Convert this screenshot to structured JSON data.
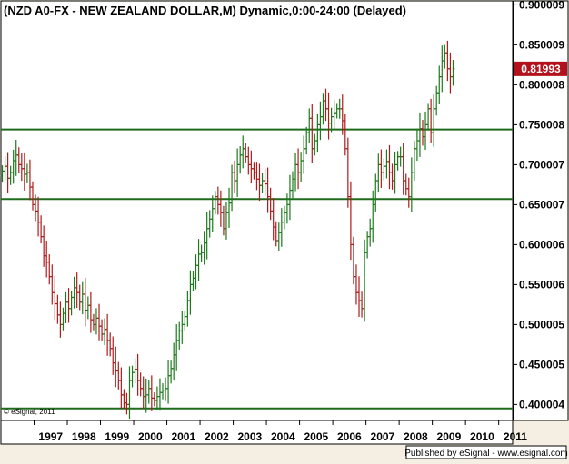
{
  "chart_data": {
    "type": "ohlc",
    "title": "(NZD A0-FX - NEW ZEALAND DOLLAR,M) Dynamic,0:00-24:00 (Delayed)",
    "copyright": "© eSignal, 2011",
    "footer": "Published by eSignal - www.esignal.com",
    "ylim": [
      0.38,
      0.905
    ],
    "x_range": [
      1996.0,
      2011.42
    ],
    "y_tick_labels": [
      "0.900009",
      "0.850009",
      "0.800008",
      "0.750008",
      "0.700007",
      "0.650007",
      "0.600006",
      "0.550006",
      "0.500005",
      "0.450005",
      "0.400004"
    ],
    "y_tick_values": [
      0.900009,
      0.850009,
      0.800008,
      0.750008,
      0.700007,
      0.650007,
      0.600006,
      0.550006,
      0.500005,
      0.450005,
      0.400004
    ],
    "x_tick_labels": [
      "1997",
      "1998",
      "1999",
      "2000",
      "2001",
      "2002",
      "2003",
      "2004",
      "2005",
      "2006",
      "2007",
      "2008",
      "2009",
      "2010",
      "2011"
    ],
    "x_tick_values": [
      1997,
      1998,
      1999,
      2000,
      2001,
      2002,
      2003,
      2004,
      2005,
      2006,
      2007,
      2008,
      2009,
      2010,
      2011
    ],
    "last_price": "0.81993",
    "last_value": 0.81993,
    "horizontal_lines": [
      0.744,
      0.657,
      0.395
    ],
    "start_year": 1996.0,
    "bars_per_year": 12,
    "close": [
      0.692,
      0.698,
      0.683,
      0.69,
      0.705,
      0.712,
      0.7,
      0.695,
      0.688,
      0.69,
      0.672,
      0.65,
      0.642,
      0.628,
      0.61,
      0.586,
      0.578,
      0.56,
      0.54,
      0.526,
      0.512,
      0.5,
      0.514,
      0.528,
      0.52,
      0.534,
      0.546,
      0.54,
      0.528,
      0.538,
      0.518,
      0.524,
      0.506,
      0.5,
      0.508,
      0.498,
      0.488,
      0.494,
      0.48,
      0.47,
      0.452,
      0.442,
      0.43,
      0.412,
      0.402,
      0.4,
      0.43,
      0.44,
      0.444,
      0.43,
      0.42,
      0.41,
      0.412,
      0.42,
      0.408,
      0.405,
      0.41,
      0.415,
      0.418,
      0.42,
      0.436,
      0.445,
      0.462,
      0.48,
      0.492,
      0.5,
      0.51,
      0.53,
      0.55,
      0.558,
      0.574,
      0.588,
      0.59,
      0.602,
      0.62,
      0.632,
      0.645,
      0.66,
      0.65,
      0.64,
      0.62,
      0.64,
      0.652,
      0.69,
      0.68,
      0.7,
      0.712,
      0.72,
      0.71,
      0.7,
      0.695,
      0.69,
      0.682,
      0.674,
      0.68,
      0.676,
      0.66,
      0.642,
      0.622,
      0.605,
      0.615,
      0.628,
      0.64,
      0.65,
      0.668,
      0.682,
      0.7,
      0.69,
      0.705,
      0.72,
      0.74,
      0.758,
      0.72,
      0.73,
      0.75,
      0.76,
      0.78,
      0.77,
      0.752,
      0.76,
      0.765,
      0.77,
      0.77,
      0.755,
      0.72,
      0.66,
      0.6,
      0.56,
      0.54,
      0.53,
      0.52,
      0.59,
      0.61,
      0.62,
      0.65,
      0.68,
      0.7,
      0.69,
      0.698,
      0.704,
      0.69,
      0.68,
      0.7,
      0.71,
      0.71,
      0.68,
      0.67,
      0.66,
      0.69,
      0.72,
      0.73,
      0.745,
      0.735,
      0.75,
      0.77,
      0.74,
      0.77,
      0.79,
      0.81,
      0.83,
      0.84,
      0.82,
      0.81,
      0.82
    ]
  }
}
